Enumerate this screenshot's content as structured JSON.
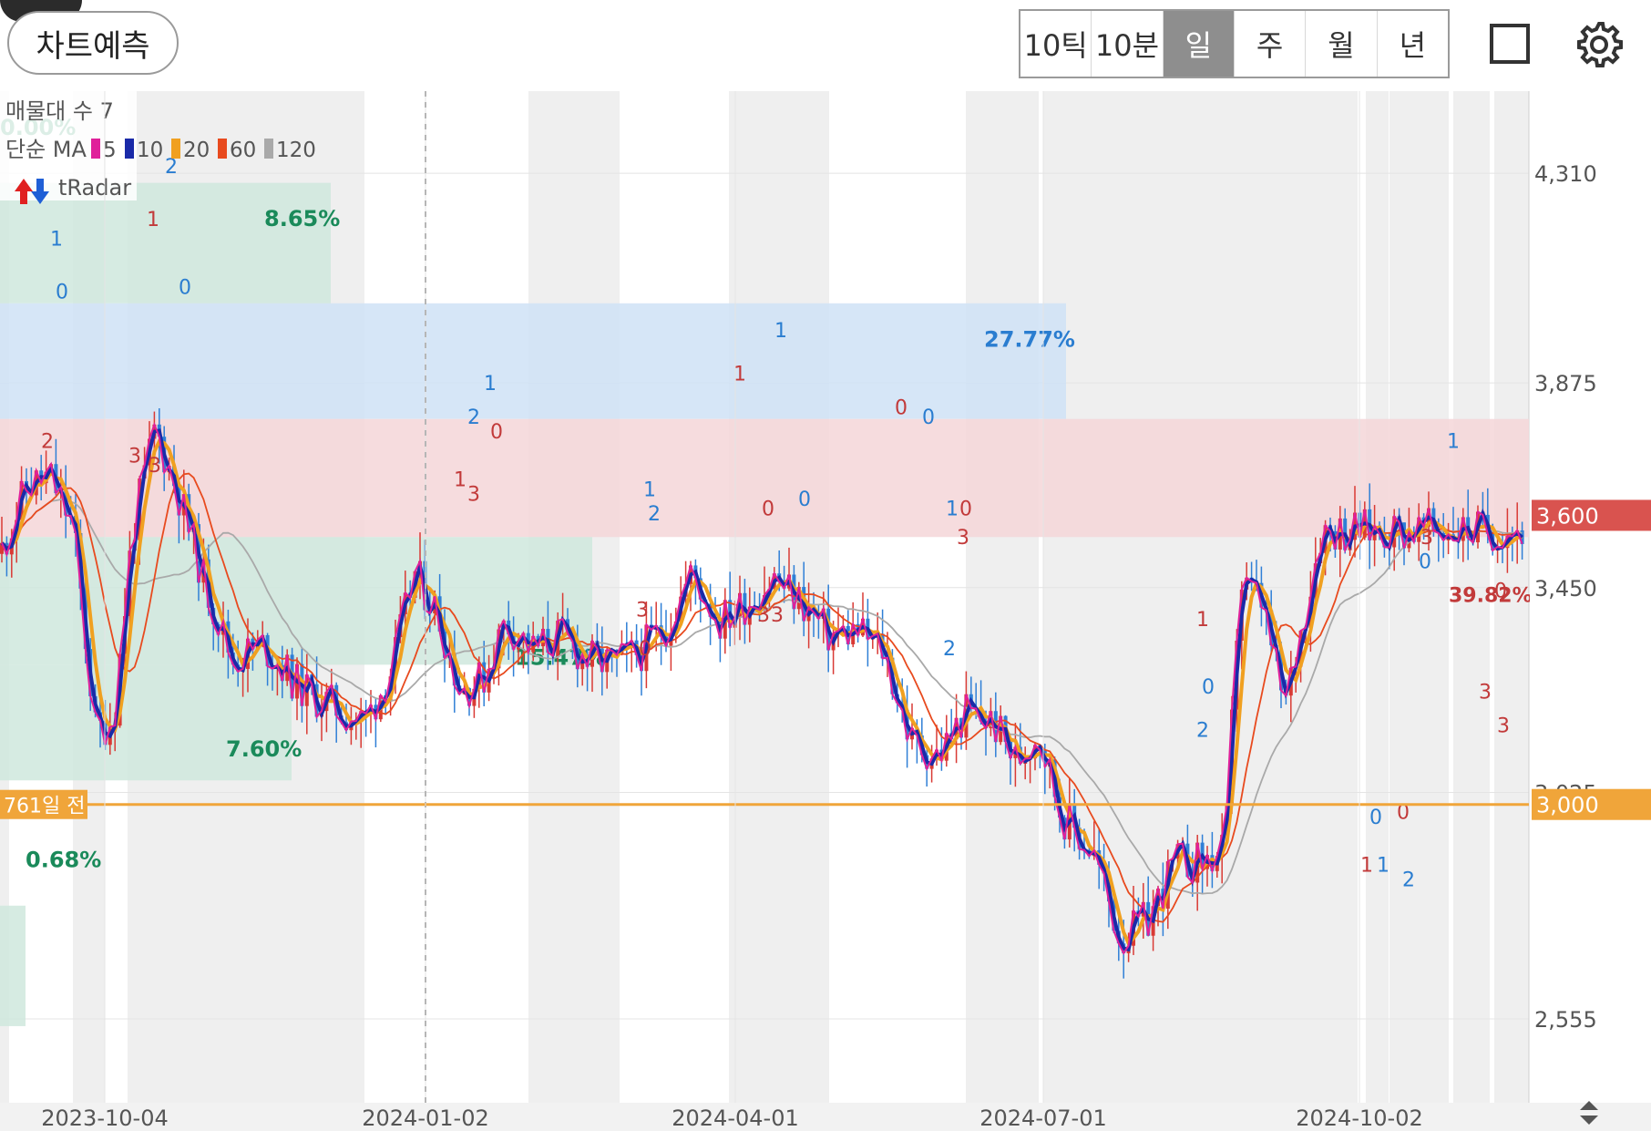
{
  "header": {
    "predict_label": "차트예측",
    "period_tabs": [
      "10틱",
      "10분",
      "일",
      "주",
      "월",
      "년"
    ],
    "active_tab": "일"
  },
  "legend": {
    "volume_profile": "매물대 수 7",
    "ma_prefix": "단순 MA",
    "ma_items": [
      {
        "period": "5",
        "color": "#e0209a"
      },
      {
        "period": "10",
        "color": "#1a2aa8"
      },
      {
        "period": "20",
        "color": "#f0a020"
      },
      {
        "period": "60",
        "color": "#e84a1e"
      },
      {
        "period": "120",
        "color": "#a9a9a9"
      }
    ],
    "tradar": "tRadar"
  },
  "colors": {
    "up": "#d93a35",
    "down": "#2f7fd6",
    "green_zone": "#cfe8dd",
    "blue_zone": "#cfe2f6",
    "red_zone": "#f5d6d8",
    "orange_line": "#f0a53a",
    "price_tag": "#d9534f"
  },
  "chart_data": {
    "type": "candlestick",
    "x_tick_labels": [
      "2023-10-04",
      "2024-01-02",
      "2024-04-01",
      "2024-07-01",
      "2024-10-02"
    ],
    "y_tick_labels": [
      "4,310",
      "3,875",
      "3,450",
      "3,025",
      "2,555"
    ],
    "y_ticks": [
      4310,
      3875,
      3450,
      3025,
      2555
    ],
    "ylim": [
      2400,
      4480
    ],
    "current_price": {
      "value": 3600,
      "label": "3,600"
    },
    "reference_line": {
      "value": 3000,
      "label": "3,000",
      "left_label": "761일 전"
    },
    "zone_percent_labels": [
      "0.00%",
      "8.65%",
      "27.77%",
      "15.47%",
      "7.60%",
      "0.68%"
    ],
    "overlapped_label": "39.82%",
    "signal_labels": [
      "1",
      "0",
      "2",
      "3",
      "2",
      "1",
      "0",
      "3",
      "1",
      "2",
      "1",
      "0",
      "3",
      "1",
      "0",
      "2",
      "3",
      "1",
      "1",
      "0",
      "0",
      "3",
      "3",
      "0",
      "0",
      "1",
      "0",
      "3",
      "2",
      "1",
      "0",
      "2",
      "1",
      "1",
      "0",
      "0",
      "1",
      "2",
      "0",
      "0",
      "3",
      "3",
      "3"
    ],
    "price_anchors": [
      [
        0,
        3520
      ],
      [
        30,
        3660
      ],
      [
        55,
        3680
      ],
      [
        80,
        3580
      ],
      [
        105,
        3150
      ],
      [
        125,
        3180
      ],
      [
        145,
        3560
      ],
      [
        170,
        3780
      ],
      [
        195,
        3650
      ],
      [
        225,
        3460
      ],
      [
        255,
        3300
      ],
      [
        290,
        3330
      ],
      [
        330,
        3240
      ],
      [
        370,
        3200
      ],
      [
        400,
        3170
      ],
      [
        430,
        3280
      ],
      [
        455,
        3480
      ],
      [
        480,
        3400
      ],
      [
        505,
        3240
      ],
      [
        530,
        3260
      ],
      [
        555,
        3380
      ],
      [
        585,
        3320
      ],
      [
        615,
        3350
      ],
      [
        645,
        3300
      ],
      [
        675,
        3290
      ],
      [
        705,
        3320
      ],
      [
        735,
        3380
      ],
      [
        760,
        3480
      ],
      [
        790,
        3380
      ],
      [
        820,
        3420
      ],
      [
        850,
        3470
      ],
      [
        880,
        3420
      ],
      [
        910,
        3350
      ],
      [
        940,
        3360
      ],
      [
        970,
        3320
      ],
      [
        1000,
        3130
      ],
      [
        1030,
        3100
      ],
      [
        1060,
        3190
      ],
      [
        1090,
        3170
      ],
      [
        1115,
        3090
      ],
      [
        1140,
        3150
      ],
      [
        1165,
        2980
      ],
      [
        1200,
        2900
      ],
      [
        1230,
        2720
      ],
      [
        1260,
        2760
      ],
      [
        1290,
        2880
      ],
      [
        1320,
        2880
      ],
      [
        1345,
        2900
      ],
      [
        1360,
        3460
      ],
      [
        1385,
        3420
      ],
      [
        1410,
        3200
      ],
      [
        1430,
        3380
      ],
      [
        1450,
        3570
      ]
    ]
  }
}
